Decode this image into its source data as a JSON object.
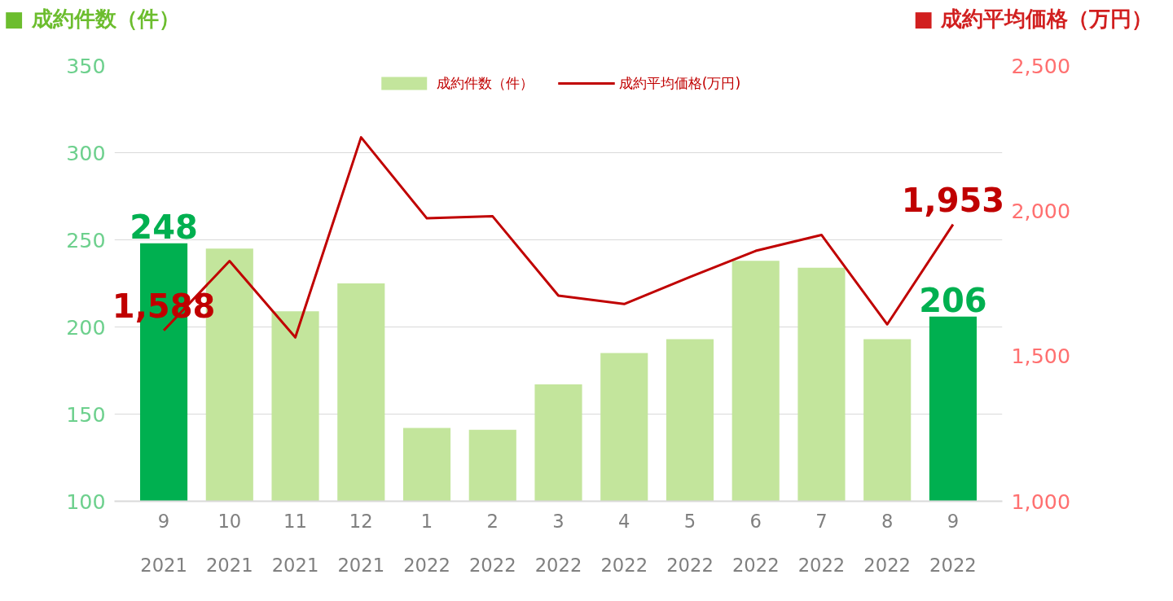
{
  "chart_data": {
    "type": "bar",
    "ylabel": "■ 成約件数（件）",
    "y2label": "■ 成約平均価格（万円）",
    "categories": [
      "9\n2021",
      "10\n2021",
      "11\n2021",
      "12\n2021",
      "1\n2022",
      "2\n2022",
      "3\n2022",
      "4\n2022",
      "5\n2022",
      "6\n2022",
      "7\n2022",
      "8\n2022",
      "9\n2022"
    ],
    "series": [
      {
        "name": "成約件数（件）",
        "color": "#c3e59c",
        "colors": [
          "#00b050",
          "#c3e59c",
          "#c3e59c",
          "#c3e59c",
          "#c3e59c",
          "#c3e59c",
          "#c3e59c",
          "#c3e59c",
          "#c3e59c",
          "#c3e59c",
          "#c3e59c",
          "#c3e59c",
          "#00b050"
        ],
        "values": [
          248,
          245,
          209,
          225,
          142,
          141,
          167,
          185,
          193,
          238,
          234,
          193,
          206
        ],
        "value_labels": [
          "248",
          null,
          null,
          null,
          null,
          null,
          null,
          null,
          null,
          null,
          null,
          null,
          "206"
        ]
      },
      {
        "name": "成約平均価格(万円)",
        "type": "line",
        "axis": "y2",
        "color": "#c00000",
        "values": [
          1588,
          1827,
          1564,
          2253,
          1974,
          1981,
          1708,
          1679,
          1772,
          1862,
          1917,
          1609,
          1953
        ],
        "value_labels": [
          "1,588",
          null,
          null,
          null,
          null,
          null,
          null,
          null,
          null,
          null,
          null,
          null,
          "1,953"
        ]
      }
    ],
    "ylim": [
      100,
      350
    ],
    "yticks": [
      100,
      150,
      200,
      250,
      300,
      350
    ],
    "y2lim": [
      1000,
      2500
    ],
    "y2ticks": [
      {
        "value": 1000,
        "label": "1,000"
      },
      {
        "value": 1500,
        "label": "1,500"
      },
      {
        "value": 2000,
        "label": "2,000"
      },
      {
        "value": 2500,
        "label": "2,500"
      }
    ],
    "grid": "y",
    "legend": "top",
    "marker": "none",
    "line_style": "solid"
  }
}
